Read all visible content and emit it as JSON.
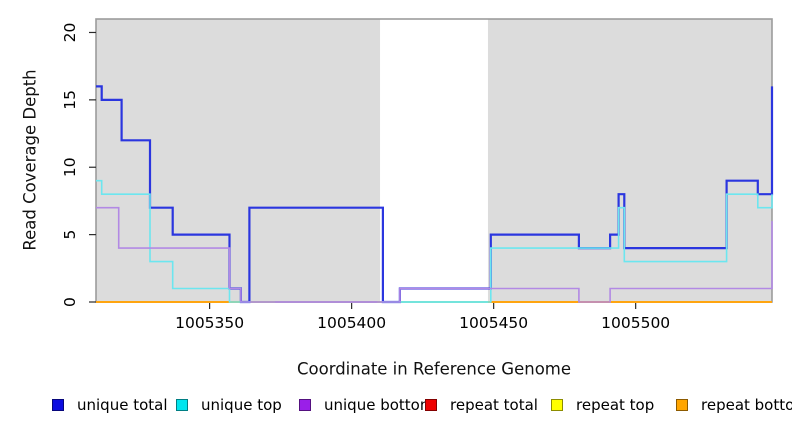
{
  "chart_data": {
    "type": "line",
    "subtype": "step-coverage-plot",
    "title": "",
    "xlabel": "Coordinate in Reference Genome",
    "ylabel": "Read Coverage Depth",
    "xlim": [
      1005310,
      1005548
    ],
    "ylim": [
      0,
      21
    ],
    "xticks": [
      1005350,
      1005400,
      1005450,
      1005500
    ],
    "yticks": [
      0,
      5,
      10,
      15,
      20
    ],
    "grid": false,
    "plot_background": "#ffffff",
    "shaded_regions": [
      {
        "from": 1005310,
        "to": 1005410,
        "color": "#dcdcdc"
      },
      {
        "from": 1005448,
        "to": 1005548,
        "color": "#dcdcdc"
      }
    ],
    "box_border_color": "#9c9c9c",
    "baseline_overlays": [
      {
        "from": 1005373,
        "to": 1005409,
        "color": "#e85570",
        "note": "red repeat-total line visible at depth 0"
      },
      {
        "from": 1005417,
        "to": 1005448,
        "color": "#8fdfa0",
        "note": "green blend of top/repeat lines at depth 0"
      }
    ],
    "series": [
      {
        "name": "unique total",
        "color": "#2b36df",
        "width": 2.2,
        "points": [
          [
            1005310,
            16
          ],
          [
            1005312,
            15
          ],
          [
            1005319,
            12
          ],
          [
            1005329,
            7
          ],
          [
            1005337,
            5
          ],
          [
            1005357,
            1
          ],
          [
            1005361,
            0
          ],
          [
            1005364,
            7
          ],
          [
            1005411,
            0
          ],
          [
            1005417,
            1
          ],
          [
            1005449,
            5
          ],
          [
            1005480,
            4
          ],
          [
            1005491,
            5
          ],
          [
            1005494,
            8
          ],
          [
            1005496,
            4
          ],
          [
            1005532,
            9
          ],
          [
            1005543,
            8
          ],
          [
            1005548,
            16
          ]
        ]
      },
      {
        "name": "unique top",
        "color": "#6ce6ef",
        "width": 1.6,
        "points": [
          [
            1005310,
            9
          ],
          [
            1005312,
            8
          ],
          [
            1005329,
            3
          ],
          [
            1005337,
            1
          ],
          [
            1005357,
            0
          ],
          [
            1005449,
            4
          ],
          [
            1005494,
            7
          ],
          [
            1005496,
            3
          ],
          [
            1005532,
            8
          ],
          [
            1005543,
            7
          ],
          [
            1005548,
            8
          ]
        ]
      },
      {
        "name": "unique bottom",
        "color": "#b289e4",
        "width": 1.6,
        "points": [
          [
            1005310,
            7
          ],
          [
            1005318,
            4
          ],
          [
            1005357,
            1
          ],
          [
            1005361,
            0
          ],
          [
            1005417,
            1
          ],
          [
            1005480,
            0
          ],
          [
            1005491,
            1
          ],
          [
            1005548,
            6
          ]
        ]
      },
      {
        "name": "repeat total",
        "color": "#e8485e",
        "width": 1.5,
        "points": [
          [
            1005310,
            0
          ]
        ]
      },
      {
        "name": "repeat top",
        "color": "#f2f23a",
        "width": 1.5,
        "points": [
          [
            1005310,
            0
          ]
        ]
      },
      {
        "name": "repeat bottom",
        "color": "#ffa510",
        "width": 2.0,
        "points": [
          [
            1005310,
            0
          ]
        ]
      }
    ],
    "legend_position": "bottom"
  },
  "legend": {
    "items": [
      {
        "label": "unique total",
        "color": "#0d0de0"
      },
      {
        "label": "unique top",
        "color": "#00e5ee"
      },
      {
        "label": "unique bottom",
        "color": "#9a1fe8"
      },
      {
        "label": "repeat total",
        "color": "#ee0000"
      },
      {
        "label": "repeat top",
        "color": "#ffff00"
      },
      {
        "label": "repeat bottom",
        "color": "#ffa500"
      }
    ]
  }
}
